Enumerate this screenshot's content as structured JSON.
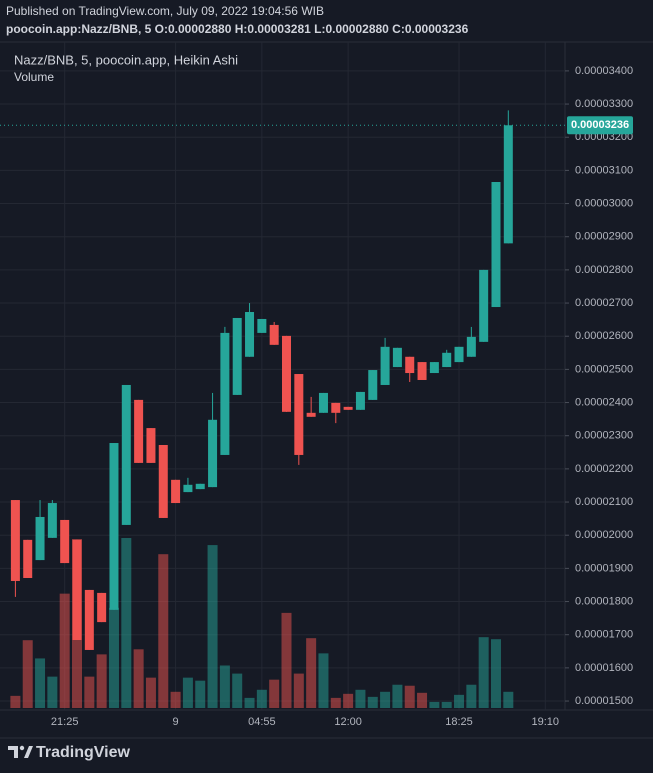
{
  "header": {
    "published": "Published on TradingView.com, July 09, 2022 19:04:56 WIB",
    "symbol_line": "poocoin.app:Nazz/BNB, 5 O:0.00002880 H:0.00003281 L:0.00002880 C:0.00003236"
  },
  "footer": {
    "brand": "TradingView"
  },
  "chart_data": {
    "type": "candlestick",
    "legend": "Nazz/BNB, 5, poocoin.app, Heikin Ashi",
    "volume_label": "Volume",
    "up_color": "#26a69a",
    "down_color": "#ef5350",
    "grid": true,
    "ylim": [
      1.479e-05,
      3.463e-05
    ],
    "yticks": [
      {
        "value": 3.4e-05,
        "label": "0.00003400"
      },
      {
        "value": 3.3e-05,
        "label": "0.00003300"
      },
      {
        "value": 3.2e-05,
        "label": "0.00003200"
      },
      {
        "value": 3.1e-05,
        "label": "0.00003100"
      },
      {
        "value": 3e-05,
        "label": "0.00003000"
      },
      {
        "value": 2.9e-05,
        "label": "0.00002900"
      },
      {
        "value": 2.8e-05,
        "label": "0.00002800"
      },
      {
        "value": 2.7e-05,
        "label": "0.00002700"
      },
      {
        "value": 2.6e-05,
        "label": "0.00002600"
      },
      {
        "value": 2.5e-05,
        "label": "0.00002500"
      },
      {
        "value": 2.4e-05,
        "label": "0.00002400"
      },
      {
        "value": 2.3e-05,
        "label": "0.00002300"
      },
      {
        "value": 2.2e-05,
        "label": "0.00002200"
      },
      {
        "value": 2.1e-05,
        "label": "0.00002100"
      },
      {
        "value": 2e-05,
        "label": "0.00002000"
      },
      {
        "value": 1.9e-05,
        "label": "0.00001900"
      },
      {
        "value": 1.8e-05,
        "label": "0.00001800"
      },
      {
        "value": 1.7e-05,
        "label": "0.00001700"
      },
      {
        "value": 1.6e-05,
        "label": "0.00001600"
      },
      {
        "value": 1.5e-05,
        "label": "0.00001500"
      }
    ],
    "xlim": [
      -0.6,
      44.6
    ],
    "xticks": [
      {
        "value": 4,
        "label": "21:25"
      },
      {
        "value": 13,
        "label": "9"
      },
      {
        "value": 20,
        "label": "04:55"
      },
      {
        "value": 27,
        "label": "12:00"
      },
      {
        "value": 36,
        "label": "18:25"
      },
      {
        "value": 43,
        "label": "19:10"
      }
    ],
    "last_price": {
      "value": 3.236e-05,
      "label": "0.00003236"
    },
    "open": [
      2.106e-05,
      1.986e-05,
      1.925e-05,
      1.992e-05,
      2.046e-05,
      1.986e-05,
      1.835e-05,
      1.826e-05,
      1.775e-05,
      2.031e-05,
      2.408e-05,
      2.323e-05,
      2.272e-05,
      2.167e-05,
      2.13e-05,
      2.139e-05,
      2.145e-05,
      2.242e-05,
      2.423e-05,
      2.538e-05,
      2.61e-05,
      2.634e-05,
      2.601e-05,
      2.486e-05,
      2.369e-05,
      2.369e-05,
      2.399e-05,
      2.387e-05,
      2.378e-05,
      2.408e-05,
      2.453e-05,
      2.507e-05,
      2.538e-05,
      2.522e-05,
      2.489e-05,
      2.507e-05,
      2.522e-05,
      2.538e-05,
      2.583e-05,
      2.688e-05,
      2.88e-05
    ],
    "high": [
      2.106e-05,
      1.986e-05,
      2.106e-05,
      2.106e-05,
      2.046e-05,
      1.986e-05,
      1.835e-05,
      1.826e-05,
      2.278e-05,
      2.453e-05,
      2.408e-05,
      2.323e-05,
      2.272e-05,
      2.167e-05,
      2.173e-05,
      2.155e-05,
      2.429e-05,
      2.628e-05,
      2.655e-05,
      2.7e-05,
      2.652e-05,
      2.643e-05,
      2.601e-05,
      2.486e-05,
      2.417e-05,
      2.429e-05,
      2.399e-05,
      2.387e-05,
      2.432e-05,
      2.498e-05,
      2.595e-05,
      2.565e-05,
      2.538e-05,
      2.522e-05,
      2.522e-05,
      2.559e-05,
      2.568e-05,
      2.628e-05,
      2.8e-05,
      3.065e-05,
      3.281e-05
    ],
    "low": [
      1.814e-05,
      1.871e-05,
      1.925e-05,
      1.992e-05,
      1.916e-05,
      1.684e-05,
      1.654e-05,
      1.738e-05,
      1.775e-05,
      2.031e-05,
      2.218e-05,
      2.218e-05,
      2.052e-05,
      2.097e-05,
      2.13e-05,
      2.139e-05,
      2.145e-05,
      2.242e-05,
      2.423e-05,
      2.538e-05,
      2.61e-05,
      2.574e-05,
      2.372e-05,
      2.212e-05,
      2.357e-05,
      2.369e-05,
      2.338e-05,
      2.378e-05,
      2.378e-05,
      2.408e-05,
      2.453e-05,
      2.507e-05,
      2.462e-05,
      2.468e-05,
      2.489e-05,
      2.507e-05,
      2.522e-05,
      2.538e-05,
      2.583e-05,
      2.688e-05,
      2.88e-05
    ],
    "close": [
      1.862e-05,
      1.871e-05,
      2.055e-05,
      2.097e-05,
      1.916e-05,
      1.684e-05,
      1.654e-05,
      1.738e-05,
      2.278e-05,
      2.453e-05,
      2.218e-05,
      2.218e-05,
      2.052e-05,
      2.097e-05,
      2.152e-05,
      2.155e-05,
      2.348e-05,
      2.61e-05,
      2.655e-05,
      2.673e-05,
      2.652e-05,
      2.574e-05,
      2.372e-05,
      2.242e-05,
      2.357e-05,
      2.429e-05,
      2.369e-05,
      2.378e-05,
      2.432e-05,
      2.498e-05,
      2.568e-05,
      2.565e-05,
      2.489e-05,
      2.468e-05,
      2.522e-05,
      2.55e-05,
      2.568e-05,
      2.598e-05,
      2.8e-05,
      3.065e-05,
      3.236e-05
    ],
    "volume": [
      12,
      67,
      49,
      31,
      113,
      167,
      31,
      53,
      99,
      168,
      58,
      30,
      152,
      16,
      30,
      27,
      161,
      42,
      34,
      10,
      18,
      28,
      94,
      34,
      69,
      54,
      10,
      14,
      18,
      11,
      16,
      23,
      22,
      15,
      6,
      6,
      13,
      23,
      70,
      68,
      16
    ]
  }
}
